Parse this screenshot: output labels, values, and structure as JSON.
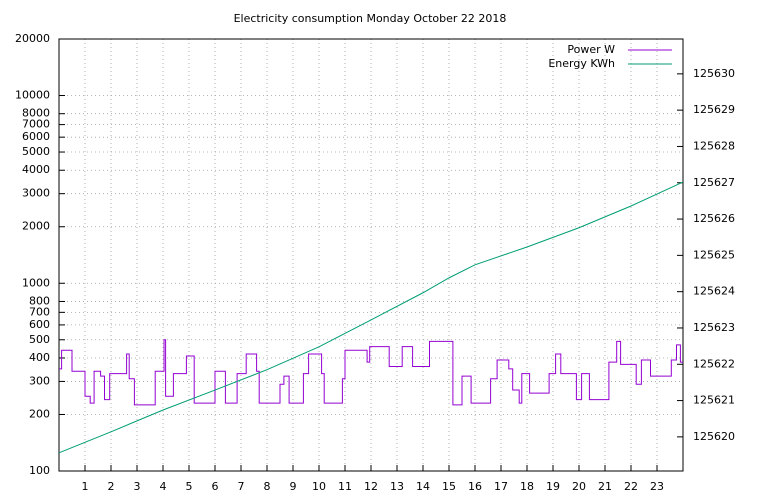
{
  "chart_data": {
    "type": "line",
    "title": "Electricity consumption Monday October 22 2018",
    "xlim": [
      0,
      24
    ],
    "xticks": [
      1,
      2,
      3,
      4,
      5,
      6,
      7,
      8,
      9,
      10,
      11,
      12,
      13,
      14,
      15,
      16,
      17,
      18,
      19,
      20,
      21,
      22,
      23
    ],
    "ylim": [
      100,
      20000
    ],
    "ylog": true,
    "yticks": [
      100,
      200,
      300,
      400,
      500,
      600,
      700,
      800,
      1000,
      2000,
      3000,
      4000,
      5000,
      6000,
      7000,
      8000,
      10000,
      20000
    ],
    "y2lim": [
      125619.06,
      125630.96
    ],
    "y2ticks": [
      125620,
      125621,
      125622,
      125623,
      125624,
      125625,
      125626,
      125627,
      125628,
      125629,
      125630
    ],
    "grid": true,
    "legend": "top right",
    "series": [
      {
        "name": "Power W",
        "color": "#9400d3",
        "x": [
          0,
          0.1,
          0.5,
          1.0,
          1.2,
          1.35,
          1.6,
          1.75,
          1.95,
          2.6,
          2.7,
          2.9,
          3.7,
          4.04,
          4.1,
          4.4,
          4.9,
          5.2,
          6.0,
          6.4,
          6.85,
          7.2,
          7.6,
          7.7,
          8.5,
          8.65,
          8.85,
          9.4,
          9.6,
          10.1,
          10.2,
          10.9,
          11.0,
          11.85,
          11.95,
          12.7,
          13.2,
          13.6,
          14.25,
          15.15,
          15.5,
          15.85,
          16.6,
          16.85,
          17.3,
          17.45,
          17.7,
          17.8,
          18.1,
          18.85,
          19.1,
          19.3,
          19.9,
          20.1,
          20.4,
          21.15,
          21.45,
          21.6,
          22.2,
          22.4,
          22.75,
          23.55,
          23.75,
          23.9
        ],
        "values": [
          350,
          440,
          340,
          250,
          230,
          340,
          320,
          240,
          330,
          420,
          310,
          225,
          340,
          500,
          250,
          330,
          410,
          230,
          340,
          230,
          330,
          420,
          340,
          230,
          290,
          320,
          230,
          330,
          420,
          330,
          230,
          310,
          440,
          380,
          460,
          360,
          460,
          360,
          490,
          225,
          320,
          230,
          310,
          390,
          350,
          270,
          230,
          330,
          260,
          330,
          420,
          330,
          240,
          330,
          240,
          380,
          490,
          370,
          290,
          390,
          320,
          390,
          470,
          380
        ]
      },
      {
        "name": "Energy KWh",
        "color": "#009e73",
        "axis": "y2",
        "x": [
          0,
          2,
          4,
          6,
          8,
          10,
          12,
          14,
          15,
          16,
          18,
          20,
          22,
          24
        ],
        "values": [
          125619.56,
          125620.14,
          125620.74,
          125621.29,
          125621.85,
          125622.48,
          125623.22,
          125623.97,
          125624.38,
          125624.74,
          125625.23,
          125625.76,
          125626.36,
          125627.02
        ]
      }
    ]
  }
}
